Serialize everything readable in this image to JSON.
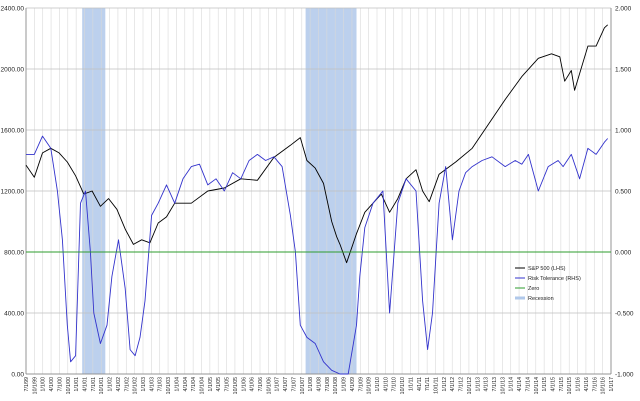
{
  "chart_data": {
    "type": "line",
    "title": "",
    "xlabel": "",
    "ylabel": "",
    "left_ylim": [
      0,
      2400
    ],
    "right_ylim": [
      -1.0,
      2.0
    ],
    "left_ticks": [
      "0.00",
      "400.00",
      "800.00",
      "1200.00",
      "1600.00",
      "2000.00",
      "2400.00"
    ],
    "right_ticks": [
      "-1.000",
      "-0.500",
      "0.000",
      "0.500",
      "1.000",
      "1.500",
      "2.000"
    ],
    "x_ticks": [
      "7/1/99",
      "10/1/99",
      "1/1/00",
      "4/1/00",
      "7/1/00",
      "10/1/00",
      "1/1/01",
      "4/1/01",
      "7/1/01",
      "10/1/01",
      "1/1/02",
      "4/1/02",
      "7/1/02",
      "10/1/02",
      "1/1/03",
      "4/1/03",
      "7/1/03",
      "10/1/03",
      "1/1/04",
      "4/1/04",
      "7/1/04",
      "10/1/04",
      "1/1/05",
      "4/1/05",
      "7/1/05",
      "10/1/05",
      "1/1/06",
      "4/1/06",
      "7/1/06",
      "10/1/06",
      "1/1/07",
      "4/1/07",
      "7/1/07",
      "10/1/07",
      "1/1/08",
      "4/1/08",
      "7/1/08",
      "10/1/08",
      "1/1/09",
      "4/1/09",
      "7/1/09",
      "10/1/09",
      "1/1/10",
      "4/1/10",
      "7/1/10",
      "10/1/10",
      "1/1/11",
      "4/1/11",
      "7/1/11",
      "10/1/11",
      "1/1/12",
      "4/1/12",
      "7/1/12",
      "10/1/12",
      "1/1/13",
      "4/1/13",
      "7/1/13",
      "10/1/13",
      "1/1/14",
      "4/1/14",
      "7/1/14",
      "10/1/14",
      "1/1/15",
      "4/1/15",
      "7/1/15",
      "10/1/15",
      "1/1/16",
      "4/1/16",
      "7/1/16",
      "10/1/16",
      "1/1/17"
    ],
    "recessions": [
      [
        2001.2,
        2001.9
      ],
      [
        2007.96,
        2009.5
      ]
    ],
    "legend_position": "right",
    "grid": true,
    "series": [
      {
        "name": "S&P 500 (LHS)",
        "axis": "left",
        "color": "#000000",
        "x": [
          1999.5,
          1999.75,
          2000.0,
          2000.25,
          2000.5,
          2000.75,
          2001.0,
          2001.25,
          2001.5,
          2001.75,
          2002.0,
          2002.25,
          2002.5,
          2002.75,
          2003.0,
          2003.25,
          2003.5,
          2003.75,
          2004.0,
          2004.5,
          2005.0,
          2005.5,
          2006.0,
          2006.5,
          2007.0,
          2007.5,
          2007.8,
          2008.0,
          2008.25,
          2008.5,
          2008.75,
          2008.9,
          2009.0,
          2009.2,
          2009.5,
          2009.75,
          2010.0,
          2010.25,
          2010.5,
          2010.75,
          2011.0,
          2011.3,
          2011.5,
          2011.7,
          2012.0,
          2012.5,
          2013.0,
          2013.5,
          2014.0,
          2014.5,
          2015.0,
          2015.4,
          2015.65,
          2015.8,
          2016.0,
          2016.1,
          2016.5,
          2016.75,
          2017.0,
          2017.1
        ],
        "values": [
          1370,
          1290,
          1450,
          1480,
          1450,
          1390,
          1300,
          1180,
          1200,
          1100,
          1150,
          1080,
          950,
          850,
          880,
          860,
          990,
          1030,
          1120,
          1120,
          1200,
          1220,
          1280,
          1270,
          1420,
          1500,
          1550,
          1400,
          1350,
          1250,
          1000,
          900,
          850,
          730,
          920,
          1060,
          1120,
          1180,
          1060,
          1150,
          1280,
          1340,
          1200,
          1130,
          1310,
          1390,
          1480,
          1640,
          1800,
          1950,
          2070,
          2100,
          2080,
          1920,
          1990,
          1860,
          2150,
          2150,
          2270,
          2290
        ]
      },
      {
        "name": "Risk Tolerance (RHS)",
        "axis": "right",
        "color": "#3333cc",
        "x": [
          1999.5,
          1999.75,
          2000.0,
          2000.25,
          2000.45,
          2000.6,
          2000.75,
          2000.85,
          2001.0,
          2001.15,
          2001.3,
          2001.45,
          2001.55,
          2001.75,
          2001.95,
          2002.1,
          2002.3,
          2002.5,
          2002.65,
          2002.8,
          2002.95,
          2003.1,
          2003.3,
          2003.5,
          2003.75,
          2004.0,
          2004.25,
          2004.5,
          2004.75,
          2005.0,
          2005.25,
          2005.5,
          2005.75,
          2006.0,
          2006.25,
          2006.5,
          2006.75,
          2007.0,
          2007.25,
          2007.5,
          2007.65,
          2007.8,
          2008.0,
          2008.25,
          2008.5,
          2008.75,
          2009.0,
          2009.25,
          2009.5,
          2009.6,
          2009.75,
          2010.0,
          2010.3,
          2010.5,
          2010.75,
          2011.0,
          2011.3,
          2011.5,
          2011.65,
          2011.8,
          2012.0,
          2012.2,
          2012.4,
          2012.6,
          2012.8,
          2013.0,
          2013.3,
          2013.6,
          2014.0,
          2014.3,
          2014.5,
          2014.7,
          2015.0,
          2015.3,
          2015.6,
          2015.75,
          2016.0,
          2016.25,
          2016.5,
          2016.75,
          2017.0,
          2017.1
        ],
        "values": [
          0.8,
          0.8,
          0.95,
          0.85,
          0.5,
          0.1,
          -0.6,
          -0.9,
          -0.85,
          0.4,
          0.5,
          0.0,
          -0.5,
          -0.75,
          -0.6,
          -0.2,
          0.1,
          -0.3,
          -0.8,
          -0.85,
          -0.7,
          -0.4,
          0.3,
          0.4,
          0.55,
          0.4,
          0.6,
          0.7,
          0.72,
          0.55,
          0.6,
          0.5,
          0.65,
          0.6,
          0.75,
          0.8,
          0.75,
          0.78,
          0.7,
          0.3,
          0.0,
          -0.6,
          -0.7,
          -0.75,
          -0.9,
          -0.97,
          -1.0,
          -1.0,
          -0.6,
          -0.2,
          0.2,
          0.4,
          0.5,
          -0.5,
          0.4,
          0.6,
          0.5,
          -0.4,
          -0.8,
          -0.5,
          0.4,
          0.7,
          0.1,
          0.5,
          0.65,
          0.7,
          0.75,
          0.78,
          0.7,
          0.75,
          0.72,
          0.8,
          0.5,
          0.7,
          0.75,
          0.7,
          0.8,
          0.6,
          0.85,
          0.8,
          0.9,
          0.93
        ]
      },
      {
        "name": "Zero",
        "axis": "right",
        "color": "#2e9c2e",
        "x": [
          1999.5,
          2017.2
        ],
        "values": [
          0,
          0
        ]
      },
      {
        "name": "Recession",
        "axis": "right",
        "color": "#b0c8ea",
        "x": [],
        "values": []
      }
    ]
  }
}
